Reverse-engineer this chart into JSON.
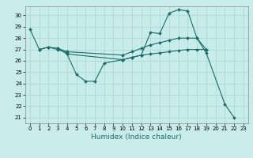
{
  "xlabel": "Humidex (Indice chaleur)",
  "bg_color": "#c8ece9",
  "grid_color": "#a8d4d0",
  "line_color": "#1a6b6a",
  "xlim": [
    -0.5,
    23.5
  ],
  "ylim": [
    20.5,
    30.8
  ],
  "yticks": [
    21,
    22,
    23,
    24,
    25,
    26,
    27,
    28,
    29,
    30
  ],
  "xticks": [
    0,
    1,
    2,
    3,
    4,
    5,
    6,
    7,
    8,
    9,
    10,
    11,
    12,
    13,
    14,
    15,
    16,
    17,
    18,
    19,
    20,
    21,
    22,
    23
  ],
  "series": [
    {
      "x": [
        0,
        1,
        2,
        3,
        4,
        5,
        6,
        7,
        8,
        10,
        11,
        12,
        13,
        14,
        15,
        16,
        17,
        18,
        19,
        21,
        22
      ],
      "y": [
        28.8,
        27.0,
        27.2,
        27.1,
        26.6,
        24.8,
        24.2,
        24.2,
        25.8,
        26.1,
        26.3,
        26.5,
        28.5,
        28.4,
        30.2,
        30.5,
        30.4,
        28.0,
        26.7,
        22.2,
        21.0
      ]
    },
    {
      "x": [
        1,
        2,
        3,
        4
      ],
      "y": [
        27.0,
        27.2,
        27.0,
        26.7
      ]
    },
    {
      "x": [
        3,
        4,
        10,
        11,
        12,
        13,
        14,
        15,
        16,
        17,
        18,
        19
      ],
      "y": [
        27.1,
        26.8,
        26.5,
        26.8,
        27.1,
        27.4,
        27.6,
        27.8,
        28.0,
        28.0,
        28.0,
        27.0
      ]
    },
    {
      "x": [
        4,
        10,
        11,
        12,
        13,
        14,
        15,
        16,
        17,
        18,
        19
      ],
      "y": [
        26.6,
        26.1,
        26.3,
        26.5,
        26.6,
        26.7,
        26.8,
        26.9,
        27.0,
        27.0,
        27.0
      ]
    }
  ],
  "marker": "D",
  "markersize": 2.0,
  "linewidth": 0.8,
  "tick_fontsize": 5.0,
  "xlabel_fontsize": 6.5
}
